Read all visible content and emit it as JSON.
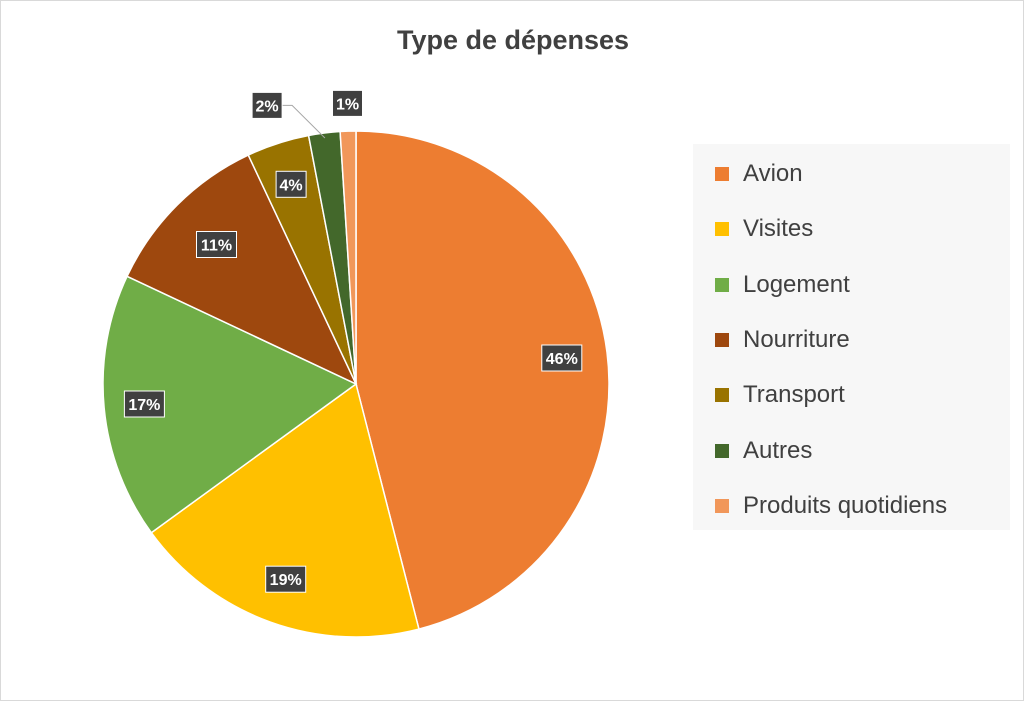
{
  "chart_data": {
    "type": "pie",
    "title": "Type de dépenses",
    "categories": [
      "Avion",
      "Visites",
      "Logement",
      "Nourriture",
      "Transport",
      "Autres",
      "Produits quotidiens"
    ],
    "values": [
      46,
      19,
      17,
      11,
      4,
      2,
      1
    ],
    "data_labels": [
      "46%",
      "19%",
      "17%",
      "11%",
      "4%",
      "2%",
      "1%"
    ],
    "colors": [
      "#ED7D31",
      "#FFC000",
      "#70AD47",
      "#9E480E",
      "#997300",
      "#43682B",
      "#F1975A"
    ],
    "legend_position": "right",
    "start_angle_deg": 0,
    "direction": "clockwise"
  }
}
